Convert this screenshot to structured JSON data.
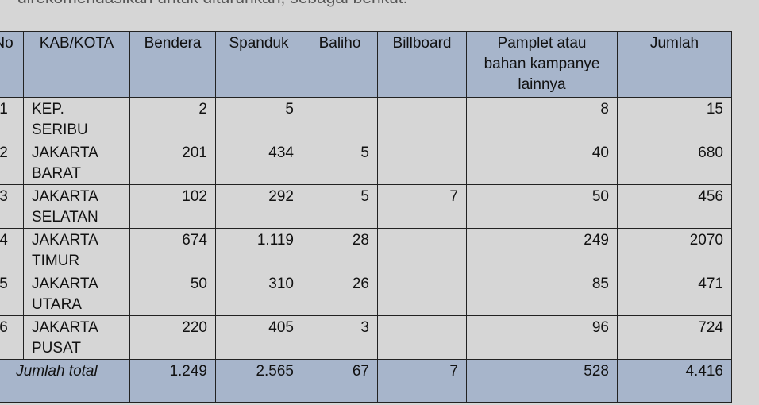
{
  "intro": "direkomendasikan untuk diturunkan, sebagai berikut:",
  "table": {
    "headers": [
      "No",
      "KAB/KOTA",
      "Bendera",
      "Spanduk",
      "Baliho",
      "Billboard",
      "Pamplet atau bahan kampanye lainnya",
      "Jumlah"
    ],
    "rows": [
      [
        "1",
        "KEP. SERIBU",
        "2",
        "5",
        null,
        null,
        "8",
        "15"
      ],
      [
        "2",
        "JAKARTA BARAT",
        "201",
        "434",
        "5",
        null,
        "40",
        "680"
      ],
      [
        "3",
        "JAKARTA SELATAN",
        "102",
        "292",
        "5",
        "7",
        "50",
        "456"
      ],
      [
        "4",
        "JAKARTA TIMUR",
        "674",
        "1.119",
        "28",
        null,
        "249",
        "2070"
      ],
      [
        "5",
        "JAKARTA UTARA",
        "50",
        "310",
        "26",
        null,
        "85",
        "471"
      ],
      [
        "6",
        "JAKARTA PUSAT",
        "220",
        "405",
        "3",
        null,
        "96",
        "724"
      ]
    ],
    "total": {
      "label": "Jumlah total",
      "values": [
        "1.249",
        "2.565",
        "67",
        "7",
        "528",
        "4.416"
      ]
    }
  }
}
